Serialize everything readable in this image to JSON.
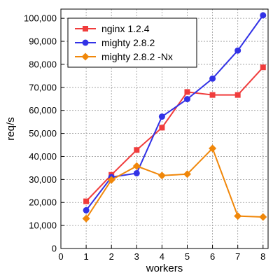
{
  "chart_data": {
    "type": "line",
    "title": "",
    "xlabel": "workers",
    "ylabel": "req/s",
    "x": [
      1,
      2,
      3,
      4,
      5,
      6,
      7,
      8
    ],
    "xlim": [
      0,
      8.2
    ],
    "ylim": [
      0,
      104000
    ],
    "xticks": [
      "0",
      "1",
      "2",
      "3",
      "4",
      "5",
      "6",
      "7",
      "8"
    ],
    "yticks": [
      "0",
      "10,000",
      "20,000",
      "30,000",
      "40,000",
      "50,000",
      "60,000",
      "70,000",
      "80,000",
      "90,000",
      "100,000"
    ],
    "grid": true,
    "legend_position": "top-left",
    "series": [
      {
        "name": "nginx 1.2.4",
        "color": "#f03c3c",
        "marker": "square",
        "values": [
          20500,
          32000,
          42800,
          52500,
          68000,
          66700,
          66700,
          78700
        ]
      },
      {
        "name": "mighty 2.8.2",
        "color": "#3232e6",
        "marker": "circle",
        "values": [
          16600,
          31000,
          32700,
          57300,
          64900,
          73800,
          86000,
          101300
        ]
      },
      {
        "name": "mighty 2.8.2 -Nx",
        "color": "#f0870a",
        "marker": "diamond",
        "values": [
          13000,
          29800,
          35800,
          31700,
          32300,
          43500,
          14100,
          13700
        ]
      }
    ]
  }
}
